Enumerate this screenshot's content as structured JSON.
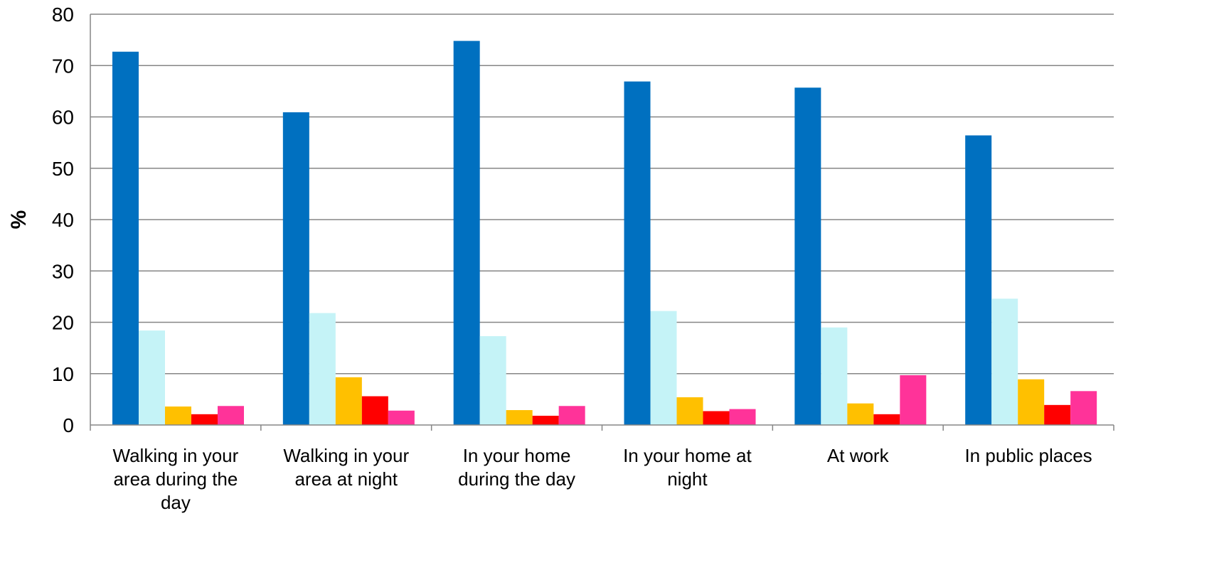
{
  "chart_data": {
    "type": "bar",
    "ylabel": "%",
    "xlabel": "",
    "ylim": [
      0,
      80
    ],
    "yticks": [
      0,
      10,
      20,
      30,
      40,
      50,
      60,
      70,
      80
    ],
    "grid": true,
    "legend": "none",
    "categories": [
      [
        "Walking in your",
        "area during the",
        "day"
      ],
      [
        "Walking in your",
        "area at night"
      ],
      [
        "In your home",
        "during the day"
      ],
      [
        "In your home at",
        "night"
      ],
      [
        "At work"
      ],
      [
        "In public places"
      ]
    ],
    "series": [
      {
        "color": "#0070C0",
        "values": [
          72.7,
          60.9,
          74.8,
          66.9,
          65.7,
          56.4
        ]
      },
      {
        "color": "#C5F3F7",
        "values": [
          18.4,
          21.8,
          17.3,
          22.2,
          19.0,
          24.6
        ]
      },
      {
        "color": "#FFC000",
        "values": [
          3.6,
          9.3,
          2.9,
          5.4,
          4.2,
          8.9
        ]
      },
      {
        "color": "#FF0000",
        "values": [
          2.1,
          5.6,
          1.8,
          2.7,
          2.1,
          3.9
        ]
      },
      {
        "color": "#FF3399",
        "values": [
          3.7,
          2.8,
          3.7,
          3.1,
          9.7,
          6.6
        ]
      }
    ]
  }
}
